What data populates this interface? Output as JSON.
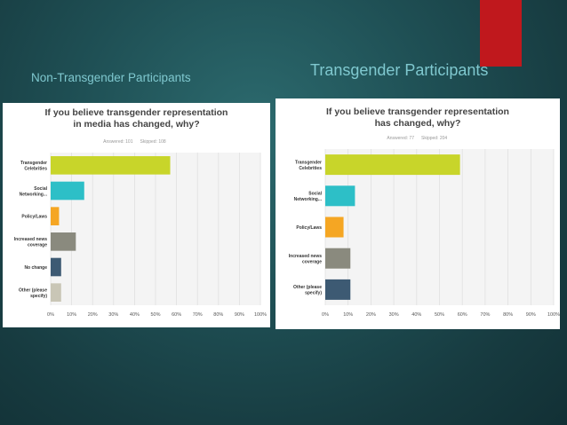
{
  "slide": {
    "accent_color": "#c0181d",
    "left_caption": "Non-Transgender Participants",
    "right_caption": "Transgender Participants"
  },
  "chart_data": [
    {
      "type": "bar",
      "orientation": "horizontal",
      "title_lines": [
        "If you believe transgender representation",
        "in media has changed, why?"
      ],
      "answered": "Answered: 101",
      "skipped": "Skipped: 108",
      "categories": [
        [
          "Transgender",
          "Celebrities"
        ],
        [
          "Social",
          "Networking..."
        ],
        [
          "Policy/Laws"
        ],
        [
          "Increased news",
          "coverage"
        ],
        [
          "No change"
        ],
        [
          "Other (please",
          "specify)"
        ]
      ],
      "values": [
        57,
        16,
        4,
        12,
        5,
        5
      ],
      "colors": [
        "#c8d52a",
        "#2dbfc7",
        "#f5a623",
        "#8a8a7e",
        "#3d5a73",
        "#c9c6b6"
      ],
      "xlim": [
        0,
        100
      ],
      "x_ticks": [
        "0%",
        "10%",
        "20%",
        "30%",
        "40%",
        "50%",
        "60%",
        "70%",
        "80%",
        "90%",
        "100%"
      ],
      "grid": true
    },
    {
      "type": "bar",
      "orientation": "horizontal",
      "title_lines": [
        "If you believe transgender representation",
        "has changed, why?"
      ],
      "answered": "Answered: 77",
      "skipped": "Skipped: 204",
      "categories": [
        [
          "Transgender",
          "Celebrities"
        ],
        [
          "Social",
          "Networking..."
        ],
        [
          "Policy/Laws"
        ],
        [
          "Increased news",
          "coverage"
        ],
        [
          "Other (please",
          "specify)"
        ]
      ],
      "values": [
        59,
        13,
        8,
        11,
        11
      ],
      "colors": [
        "#c8d52a",
        "#2dbfc7",
        "#f5a623",
        "#8a8a7e",
        "#3d5a73"
      ],
      "xlim": [
        0,
        100
      ],
      "x_ticks": [
        "0%",
        "10%",
        "20%",
        "30%",
        "40%",
        "50%",
        "60%",
        "70%",
        "80%",
        "90%",
        "100%"
      ],
      "grid": true
    }
  ]
}
